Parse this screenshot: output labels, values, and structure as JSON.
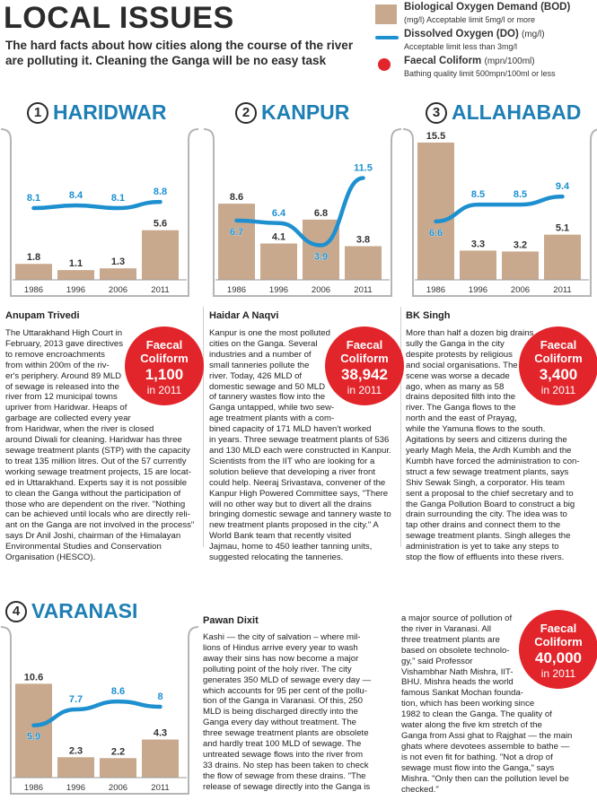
{
  "header": {
    "title": "LOCAL ISSUES",
    "intro": "The hard facts about how cities along the course of the river are polluting it. Cleaning the Ganga will be no easy task"
  },
  "legend": {
    "bod": {
      "label": "Biological Oxygen Demand (BOD)",
      "unit": "(mg/l)",
      "note": "Acceptable limit 5mg/l or more",
      "color": "#c9a98d"
    },
    "do": {
      "label": "Dissolved Oxygen (DO)",
      "unit": "(mg/l)",
      "note": "Acceptable limit less than 3mg/l",
      "color": "#1e90d0"
    },
    "fc": {
      "label": "Faecal Coliform",
      "unit": "(mpn/100ml)",
      "note": "Bathing quality limit 500mpn/100ml or less",
      "color": "#e2252b"
    }
  },
  "chart_data": [
    {
      "type": "bar",
      "index": "1",
      "title": "HARIDWAR",
      "categories": [
        "1986",
        "1996",
        "2006",
        "2011"
      ],
      "series": [
        {
          "name": "Biological Oxygen Demand (BOD)",
          "type": "bar",
          "values": [
            1.8,
            1.1,
            1.3,
            5.6
          ]
        },
        {
          "name": "Dissolved Oxygen (DO)",
          "type": "line",
          "values": [
            8.1,
            8.4,
            8.1,
            8.8
          ]
        }
      ],
      "bar_labels": [
        "1.8",
        "1.1",
        "1.3",
        "5.6"
      ],
      "line_labels": [
        "8.1",
        "8.4",
        "8.1",
        "8.8"
      ],
      "ylim": [
        0,
        16
      ]
    },
    {
      "type": "bar",
      "index": "2",
      "title": "KANPUR",
      "categories": [
        "1986",
        "1996",
        "2006",
        "2011"
      ],
      "series": [
        {
          "name": "Biological Oxygen Demand (BOD)",
          "type": "bar",
          "values": [
            8.6,
            4.1,
            6.8,
            3.8
          ]
        },
        {
          "name": "Dissolved Oxygen (DO)",
          "type": "line",
          "values": [
            6.7,
            6.4,
            3.9,
            11.5
          ]
        }
      ],
      "bar_labels": [
        "8.6",
        "4.1",
        "6.8",
        "3.8"
      ],
      "line_labels": [
        "6.7",
        "6.4",
        "3.9",
        "11.5"
      ],
      "ylim": [
        0,
        16
      ]
    },
    {
      "type": "bar",
      "index": "3",
      "title": "ALLAHABAD",
      "categories": [
        "1986",
        "1996",
        "2006",
        "2011"
      ],
      "series": [
        {
          "name": "Biological Oxygen Demand (BOD)",
          "type": "bar",
          "values": [
            15.5,
            3.3,
            3.2,
            5.1
          ]
        },
        {
          "name": "Dissolved Oxygen (DO)",
          "type": "line",
          "values": [
            6.6,
            8.5,
            8.5,
            9.4
          ]
        }
      ],
      "bar_labels": [
        "15.5",
        "3.3",
        "3.2",
        "5.1"
      ],
      "line_labels": [
        "6.6",
        "8.5",
        "8.5",
        "9.4"
      ],
      "ylim": [
        0,
        16
      ]
    },
    {
      "type": "bar",
      "index": "4",
      "title": "VARANASI",
      "categories": [
        "1986",
        "1996",
        "2006",
        "2011"
      ],
      "series": [
        {
          "name": "Biological Oxygen Demand (BOD)",
          "type": "bar",
          "values": [
            10.6,
            2.3,
            2.2,
            4.3
          ]
        },
        {
          "name": "Dissolved Oxygen (DO)",
          "type": "line",
          "values": [
            5.9,
            7.7,
            8.6,
            8.0
          ]
        }
      ],
      "bar_labels": [
        "10.6",
        "2.3",
        "2.2",
        "4.3"
      ],
      "line_labels": [
        "5.9",
        "7.7",
        "8.6",
        "8"
      ],
      "ylim": [
        0,
        16
      ]
    }
  ],
  "cities": [
    {
      "byline": "Anupam Trivedi",
      "coliform": {
        "label1": "Faecal",
        "label2": "Coliform",
        "value": "1,100",
        "year": "in 2011"
      },
      "lines": [
        "The Uttarakhand High Court in",
        "February, 2013 gave directives",
        "to remove encroachments",
        "from within 200m of the riv-",
        "er's periphery. Around 89 MLD",
        "of sewage is released into the",
        "river from 12 municipal towns",
        "upriver from Haridwar. Heaps of",
        "garbage are collected every year",
        "from Haridwar, when the river is closed",
        "around Diwali for cleaning. Haridwar has three",
        "sewage treatment plants (STP) with the capacity",
        "to treat 135 million litres. Out of the 57 currently",
        "working sewage treatment projects, 15 are locat-",
        "ed in Uttarakhand. Experts say it is not possible",
        "to clean the Ganga without the participation of",
        "those who are dependent on the river. \"Nothing",
        "can be achieved until locals who are directly reli-",
        "ant on the Ganga are not involved in the process\"",
        "says Dr Anil Joshi, chairman of the Himalayan",
        "Environmental Studies and Conservation",
        "Organisation (HESCO)."
      ]
    },
    {
      "byline": "Haidar A Naqvi",
      "coliform": {
        "label1": "Faecal",
        "label2": "Coliform",
        "value": "38,942",
        "year": "in 2011"
      },
      "lines": [
        "Kanpur is one the most polluted",
        "cities on the Ganga. Several",
        "industries and a number of",
        "small tanneries pollute the",
        "river. Today, 426 MLD of",
        "domestic sewage and 50 MLD",
        "of tannery wastes flow into the",
        "Ganga untapped, while two sew-",
        "age treatment plants with a com-",
        "bined capacity of 171 MLD haven't worked",
        "in years. Three sewage treatment plants of 536",
        "and 130 MLD each were constructed in Kanpur.",
        "Scientists from the IIT who are looking for a",
        "solution believe that developing a river front",
        "could help. Neeraj Srivastava, convener of the",
        "Kanpur High Powered Committee says, \"There",
        "will no other way but to divert all the drains",
        "bringing domestic sewage and tannery waste to",
        "new treatment plants proposed in the city.\" A",
        "World Bank team that recently visited",
        "Jajmau, home to 450 leather tanning units,",
        "suggested relocating the tanneries."
      ]
    },
    {
      "byline": "BK Singh",
      "coliform": {
        "label1": "Faecal",
        "label2": "Coliform",
        "value": "3,400",
        "year": "in 2011"
      },
      "lines": [
        "More than half a dozen big drains",
        "sully the Ganga in the city",
        "despite protests by religious",
        "and social organisations. The",
        "scene was worse a decade",
        "ago, when as many as 58",
        "drains deposited filth into the",
        "river. The Ganga flows to the",
        "north and the east of Prayag,",
        "while the Yamuna flows to the south.",
        "Agitations by seers and citizens during the",
        "yearly Magh Mela, the Ardh Kumbh and the",
        "Kumbh have forced the administration to con-",
        "struct a few sewage treatment plants, says",
        "Shiv Sewak Singh, a corporator. His team",
        "sent a proposal to the chief secretary and to",
        "the Ganga Pollution Board to construct a big",
        "drain surrounding the city. The idea was to",
        "tap other drains and connect them to the",
        "sewage treatment plants. Singh alleges the",
        "administration is yet to take any steps to",
        "stop the flow of effluents into these rivers."
      ]
    },
    {
      "byline": "Pawan Dixit",
      "coliform": {
        "label1": "Faecal",
        "label2": "Coliform",
        "value": "40,000",
        "year": "in 2011"
      },
      "lines_col1": [
        "Kashi — the city of salvation – where mil-",
        "lions of Hindus arrive every year to wash",
        "away their sins has now become a major",
        "polluting point of the holy river. The city",
        "generates 350 MLD of sewage every day —",
        "which accounts for 95 per cent of the pollu-",
        "tion of the Ganga in Varanasi. Of this, 250",
        "MLD is being discharged directly into the",
        "Ganga every day without treatment. The",
        "three sewage treatment plants are obsolete",
        "and hardly treat 100 MLD of sewage. The",
        "untreated sewage flows into the river from",
        "33 drains. No step has been taken to check",
        "the flow of sewage from these drains. \"The",
        "release of sewage directly into the Ganga is"
      ],
      "lines_col2": [
        "a major source of pollution of",
        "the river in Varanasi. All",
        "three treatment plants are",
        "based on obsolete technolo-",
        "gy,\" said Professor",
        "Vishambhar Nath Mishra, IIT-",
        "BHU. Mishra heads the world",
        "famous Sankat Mochan founda-",
        "tion, which has been working since",
        "1982 to clean the Ganga. The quality of",
        "water along the five km stretch of the",
        "Ganga from Assi ghat to Rajghat — the main",
        "ghats where devotees assemble to bathe —",
        "is not even fit for bathing. \"Not a drop of",
        "sewage must flow into the Ganga,\" says",
        "Mishra. \"Only then can the pollution level be",
        "checked.\""
      ]
    }
  ]
}
